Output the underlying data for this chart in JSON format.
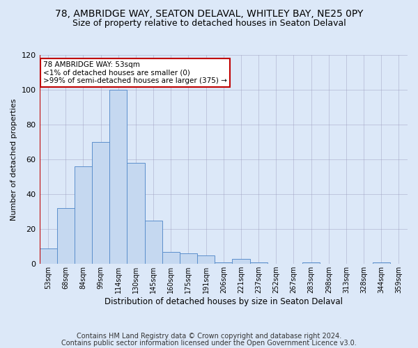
{
  "title1": "78, AMBRIDGE WAY, SEATON DELAVAL, WHITLEY BAY, NE25 0PY",
  "title2": "Size of property relative to detached houses in Seaton Delaval",
  "xlabel": "Distribution of detached houses by size in Seaton Delaval",
  "ylabel": "Number of detached properties",
  "categories": [
    "53sqm",
    "68sqm",
    "84sqm",
    "99sqm",
    "114sqm",
    "130sqm",
    "145sqm",
    "160sqm",
    "175sqm",
    "191sqm",
    "206sqm",
    "221sqm",
    "237sqm",
    "252sqm",
    "267sqm",
    "283sqm",
    "298sqm",
    "313sqm",
    "328sqm",
    "344sqm",
    "359sqm"
  ],
  "values": [
    9,
    32,
    56,
    70,
    100,
    58,
    25,
    7,
    6,
    5,
    1,
    3,
    1,
    0,
    0,
    1,
    0,
    0,
    0,
    1,
    0
  ],
  "bar_color": "#c5d8f0",
  "bar_edge_color": "#5b8fcc",
  "highlight_index": 0,
  "highlight_color": "#c00000",
  "annotation_line1": "78 AMBRIDGE WAY: 53sqm",
  "annotation_line2": "<1% of detached houses are smaller (0)",
  "annotation_line3": ">99% of semi-detached houses are larger (375) →",
  "annotation_box_color": "#ffffff",
  "annotation_box_edge": "#c00000",
  "ylim": [
    0,
    120
  ],
  "yticks": [
    0,
    20,
    40,
    60,
    80,
    100,
    120
  ],
  "footer1": "Contains HM Land Registry data © Crown copyright and database right 2024.",
  "footer2": "Contains public sector information licensed under the Open Government Licence v3.0.",
  "bg_color": "#dce8f8",
  "plot_bg_color": "#dce8f8",
  "title1_fontsize": 10,
  "title2_fontsize": 9,
  "annotation_fontsize": 7.5,
  "footer_fontsize": 7.0,
  "ylabel_fontsize": 8,
  "xlabel_fontsize": 8.5
}
